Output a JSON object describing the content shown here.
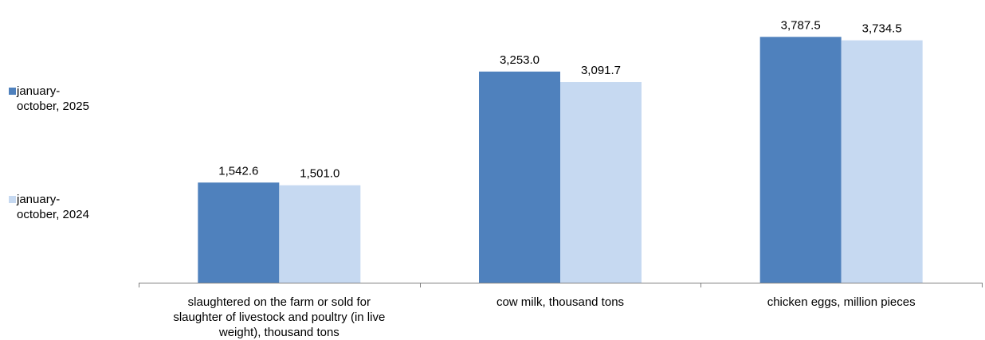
{
  "chart_data": {
    "type": "bar",
    "categories": [
      "slaughtered on the farm or sold for slaughter of livestock and poultry (in live weight), thousand tons",
      "cow milk, thousand tons",
      "chicken eggs, million pieces"
    ],
    "category_label_lines": [
      [
        "slaughtered on the farm or sold for",
        "slaughter of livestock and poultry (in live",
        "weight), thousand tons"
      ],
      [
        "cow milk, thousand tons"
      ],
      [
        "chicken eggs, million pieces"
      ]
    ],
    "series": [
      {
        "name": "january-october, 2025",
        "name_lines": [
          "january-",
          "october, 2025"
        ],
        "color": "#4f81bd",
        "values": [
          1542.6,
          3253.0,
          3787.5
        ],
        "value_labels": [
          "1,542.6",
          "3,253.0",
          "3,787.5"
        ]
      },
      {
        "name": "january-october, 2024",
        "name_lines": [
          "january-",
          "october, 2024"
        ],
        "color": "#c6d9f1",
        "values": [
          1501.0,
          3091.7,
          3734.5
        ],
        "value_labels": [
          "1,501.0",
          "3,091.7",
          "3,734.5"
        ]
      }
    ],
    "title": "",
    "xlabel": "",
    "ylabel": "",
    "ylim": [
      0,
      4000
    ],
    "grid": false,
    "legend_position": "left",
    "axis_color": "#808080"
  }
}
